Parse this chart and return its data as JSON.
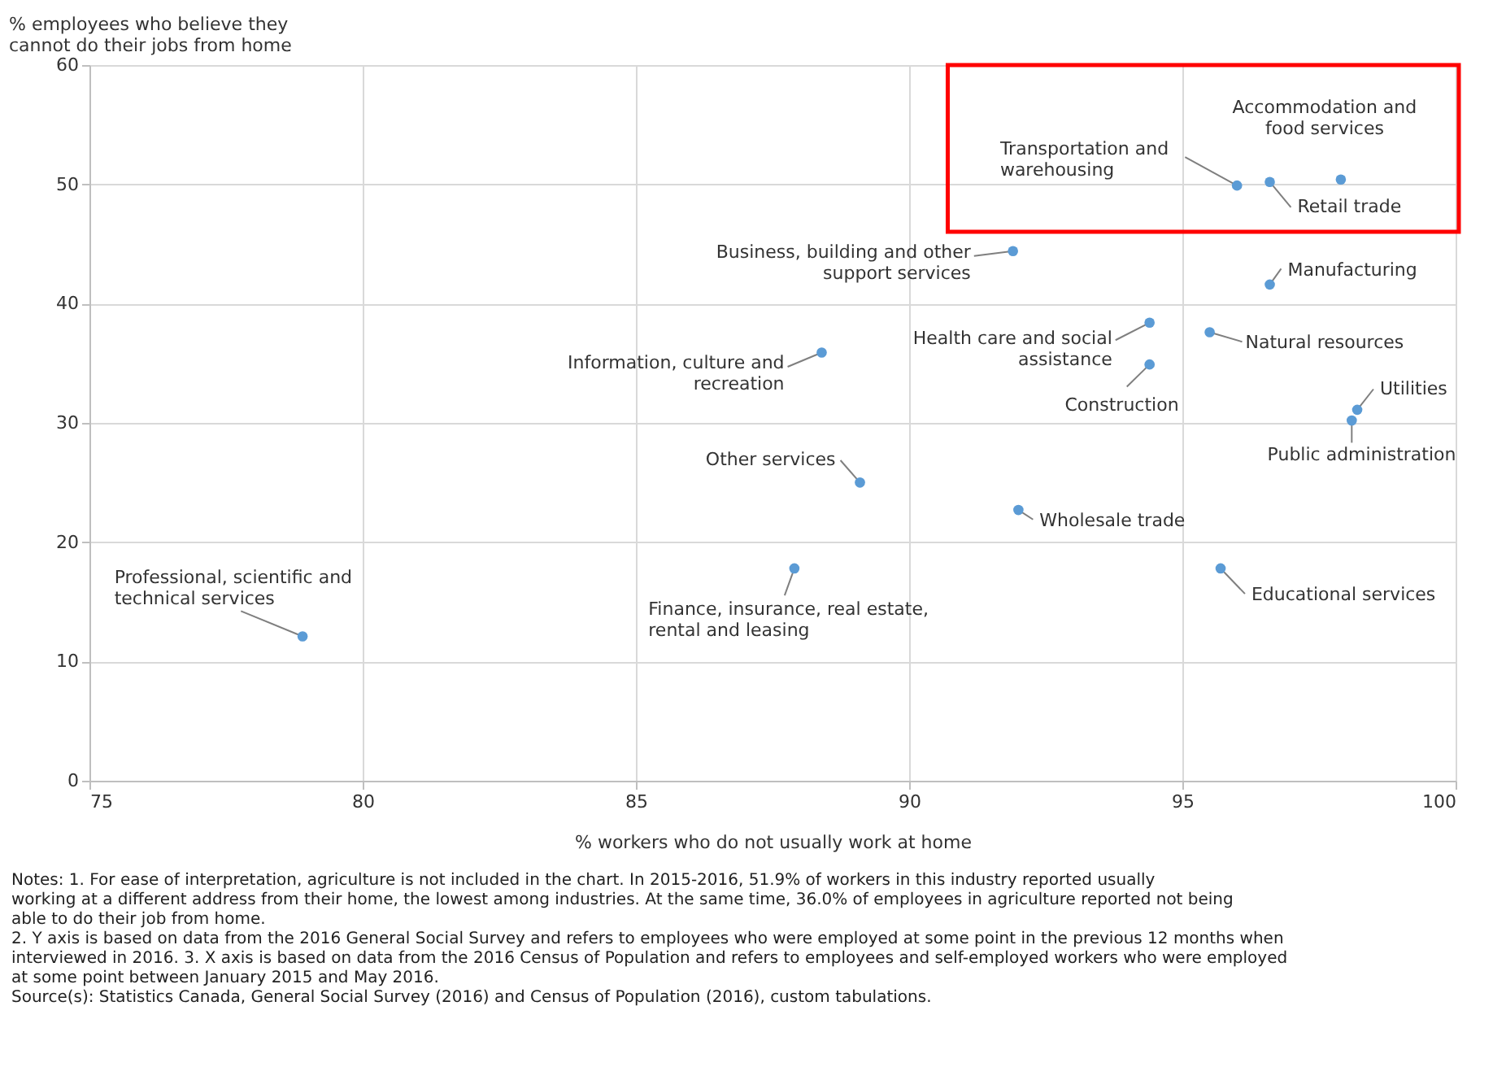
{
  "chart_data": {
    "type": "scatter",
    "xlabel": "% workers who do not usually work at home",
    "ylabel": "% employees who believe they\ncannot do their jobs from home",
    "xlim": [
      75,
      100
    ],
    "xticks": [
      75,
      80,
      85,
      90,
      95,
      100
    ],
    "ylim": [
      0,
      60
    ],
    "yticks": [
      0,
      10,
      20,
      30,
      40,
      50,
      60
    ],
    "grid": true,
    "marker": "circle",
    "series": [
      {
        "color": "#5b9bd5",
        "x": [
          78.9,
          87.9,
          89.1,
          88.4,
          91.9,
          92.0,
          94.4,
          94.4,
          95.5,
          95.7,
          96.0,
          96.6,
          97.9,
          96.6,
          98.2,
          98.1
        ],
        "values": [
          12.1,
          17.8,
          25.0,
          35.9,
          44.4,
          22.7,
          38.4,
          34.9,
          37.6,
          17.8,
          49.9,
          50.2,
          50.4,
          41.6,
          31.1,
          30.2
        ]
      }
    ],
    "annotations": [
      {
        "text": "Professional, scientific and\ntechnical services",
        "x": 78.9,
        "y": 12.1
      },
      {
        "text": "Finance, insurance, real estate,\nrental and leasing",
        "x": 87.9,
        "y": 17.8
      },
      {
        "text": "Other services",
        "x": 89.1,
        "y": 25.0
      },
      {
        "text": "Information, culture and\nrecreation",
        "x": 88.4,
        "y": 35.9
      },
      {
        "text": "Business, building and other\nsupport services",
        "x": 91.9,
        "y": 44.4
      },
      {
        "text": "Wholesale trade",
        "x": 92.0,
        "y": 22.7
      },
      {
        "text": "Health care and social\nassistance",
        "x": 94.4,
        "y": 38.4
      },
      {
        "text": "Construction",
        "x": 94.4,
        "y": 34.9
      },
      {
        "text": "Natural resources",
        "x": 95.5,
        "y": 37.6
      },
      {
        "text": "Educational services",
        "x": 95.7,
        "y": 17.8
      },
      {
        "text": "Transportation and\nwarehousing",
        "x": 96.0,
        "y": 49.9
      },
      {
        "text": "Retail trade",
        "x": 96.6,
        "y": 50.2
      },
      {
        "text": "Accommodation and\nfood services",
        "x": 97.9,
        "y": 50.4
      },
      {
        "text": "Manufacturing",
        "x": 96.6,
        "y": 41.6
      },
      {
        "text": "Utilities",
        "x": 98.2,
        "y": 31.1
      },
      {
        "text": "Public administration",
        "x": 98.1,
        "y": 30.2
      },
      "Notes: 1. For ease of interpretation, agriculture is not included in the chart. In 2015-2016, 51.9% of workers in this industry reported usually working at a different address from their home, the lowest among industries. At the same time, 36.0% of employees in agriculture reported not being able to do their job from home.",
      "2. Y axis is based on data from the 2016 General Social Survey and refers to employees who were employed at some point in the previous 12 months when interviewed in 2016. 3. X axis is based on data from the 2016 Census of Population and refers to employees and self-employed workers who were employed at some point between January 2015 and May 2016.",
      "Source(s): Statistics Canada, General Social Survey (2016) and Census of Population (2016), custom tabulations."
    ]
  }
}
